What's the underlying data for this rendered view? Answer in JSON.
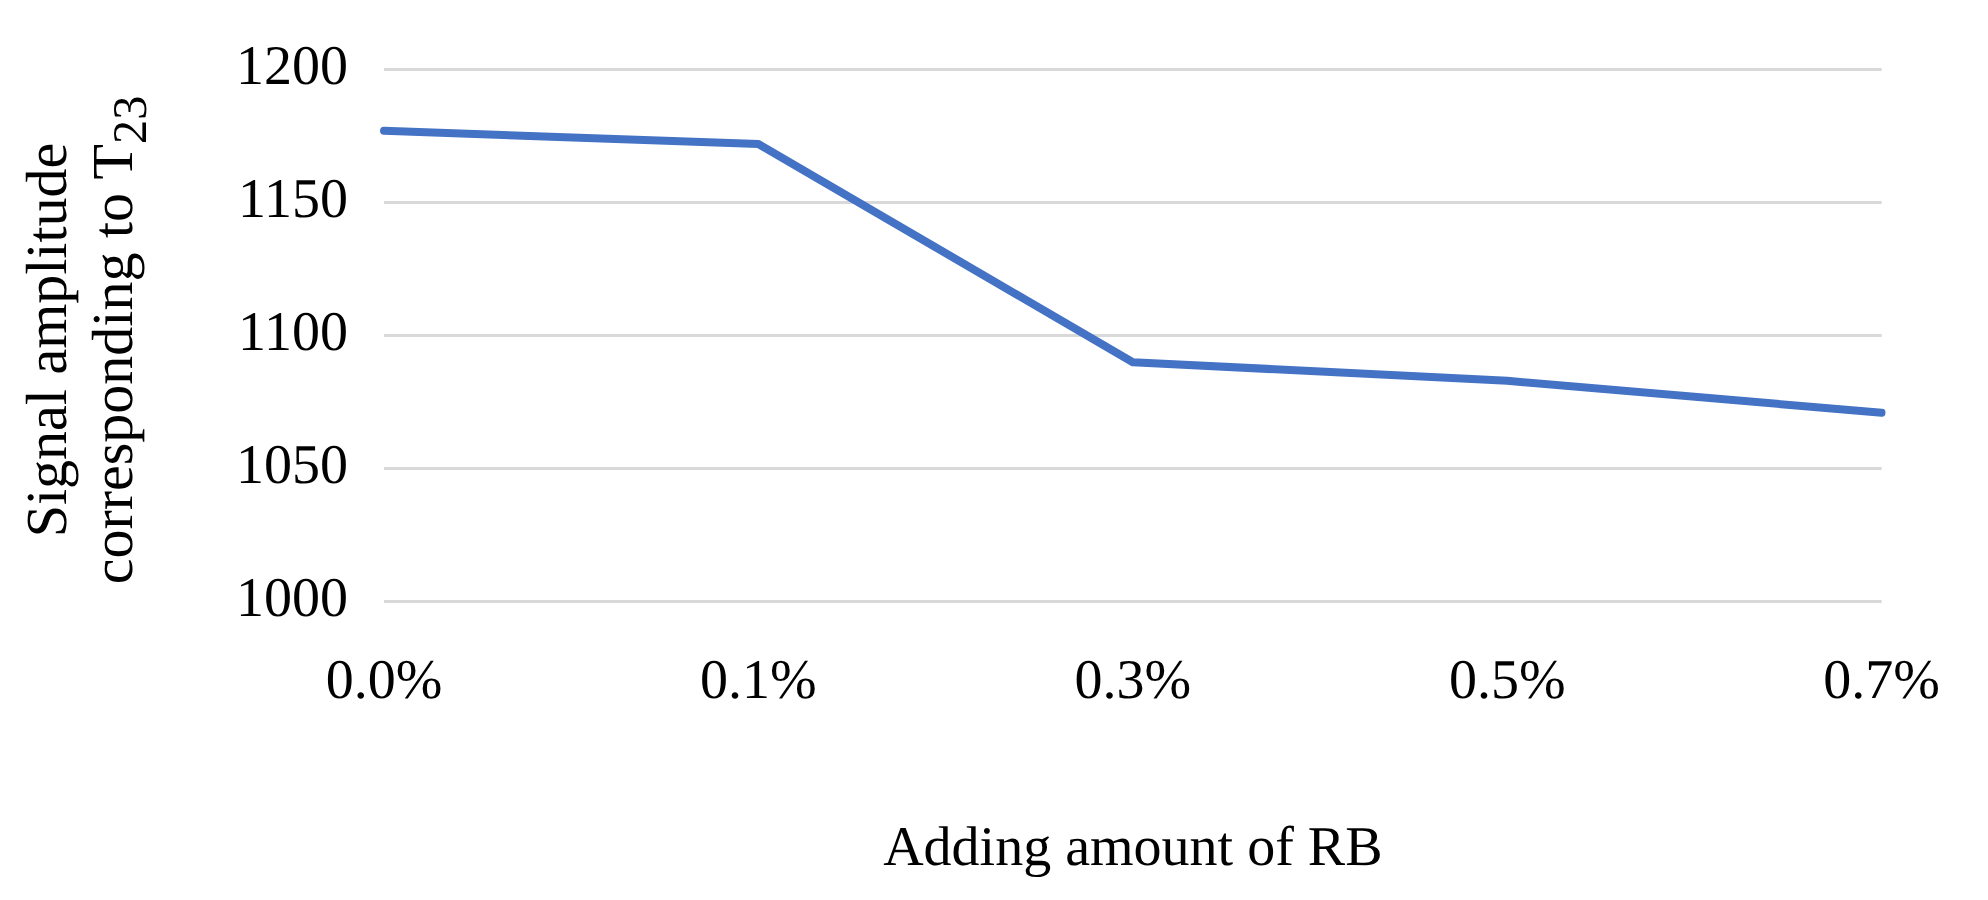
{
  "chart_data": {
    "type": "line",
    "xlabel": "Adding amount of RB",
    "ylabel": "Signal amplitude\ncorresponding to T$_{23}$",
    "categories": [
      "0.0%",
      "0.1%",
      "0.3%",
      "0.5%",
      "0.7%"
    ],
    "series": [
      {
        "color": "#4472c4",
        "values": [
          1177,
          1172,
          1090,
          1083,
          1071
        ]
      }
    ],
    "ylim": [
      1000,
      1200
    ],
    "yticks": [
      1000,
      1050,
      1100,
      1150,
      1200
    ],
    "grid": "y",
    "legend": false,
    "marker": "none",
    "line_style": "solid"
  }
}
